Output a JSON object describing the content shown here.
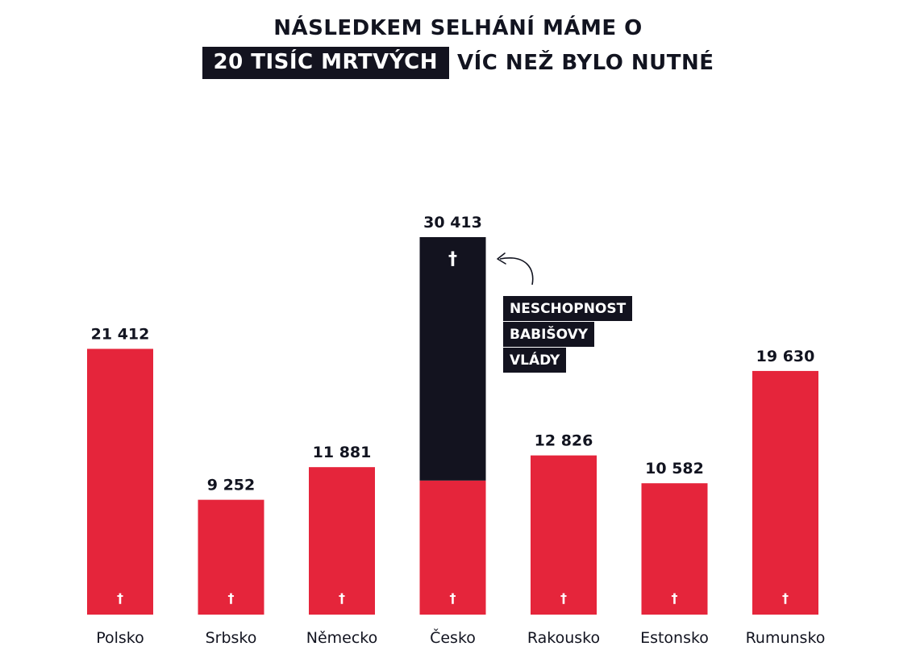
{
  "title": {
    "line1": "NÁSLEDKEM SELHÁNÍ MÁME O",
    "highlight": "20 TISÍC MRTVÝCH",
    "line2_rest": "VÍC NEŽ BYLO NUTNÉ"
  },
  "annotation": {
    "lines": [
      "NESCHOPNOST",
      "BABIŠOVY",
      "VLÁDY"
    ]
  },
  "colors": {
    "bar": "#e5253b",
    "excess": "#13131f",
    "text": "#121420",
    "cross": "#ffffff"
  },
  "icon": "cross-icon",
  "chart_data": {
    "type": "bar",
    "categories": [
      "Polsko",
      "Srbsko",
      "Německo",
      "Česko",
      "Rakousko",
      "Estonsko",
      "Rumunsko"
    ],
    "value_labels": [
      "21 412",
      "9 252",
      "11 881",
      "30 413",
      "12 826",
      "10 582",
      "19 630"
    ],
    "series": [
      {
        "values": [
          21412,
          9252,
          11881,
          10800,
          12826,
          10582,
          19630
        ]
      },
      {
        "values": [
          0,
          0,
          0,
          19613,
          0,
          0,
          0
        ]
      }
    ],
    "totals": [
      21412,
      9252,
      11881,
      30413,
      12826,
      10582,
      19630
    ],
    "stacked": true,
    "ylim": [
      0,
      30413
    ],
    "grid": false,
    "legend": "none"
  }
}
